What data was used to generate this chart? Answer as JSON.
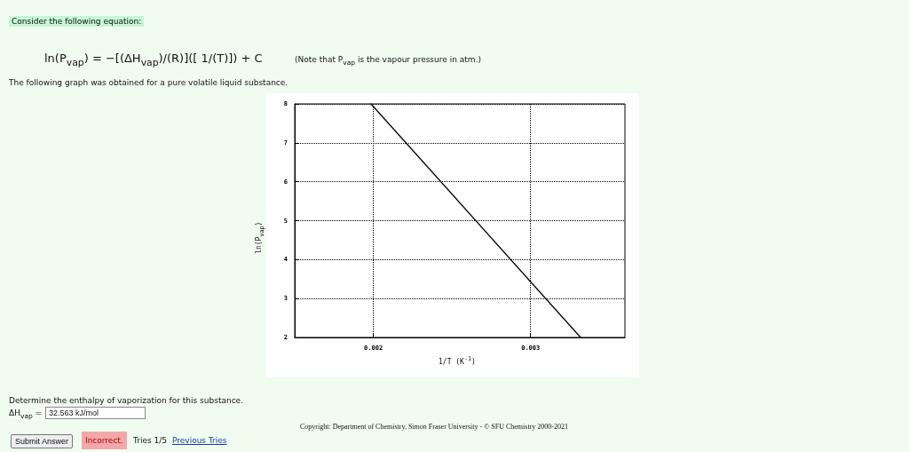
{
  "chart_data": {
    "type": "line",
    "title": "Consider the following equation:",
    "subtitle": "ln(P$_{vap}$) = −[(ΔH$_{vap}$)/(R)]([ 1/(T)]) + C",
    "xlabel": "1/T (K$^{-1}$)",
    "ylabel": "ln(P$_{vap}$)",
    "x": [
      0.001985,
      0.003318
    ],
    "series": [
      {
        "color": "#000000",
        "values": [
          8,
          2
        ]
      }
    ],
    "xlim": [
      0.0015,
      0.0036
    ],
    "xticks": [
      0.002,
      0.003
    ],
    "ylim": [
      2,
      8
    ],
    "yticks": [
      2,
      3,
      4,
      5,
      6,
      7,
      8
    ],
    "grid": true,
    "marker": "none",
    "line_style": "solid",
    "annotations": [
      "(Note that P$_{vap}$ is the vapour pressure in atm.)",
      "The following graph was obtained for a pure volatile liquid substance.",
      "Determine the enthalpy of vaporization for this substance.",
      "ΔH$_{vap}$ =",
      "32.563 kJ/mol",
      "Copyright: Department of Chemistry, Simon Fraser University - © SFU Chemistry 2000-2021",
      "Submit Answer",
      "Incorrect.",
      "Tries 1/5",
      "Previous Tries"
    ]
  }
}
